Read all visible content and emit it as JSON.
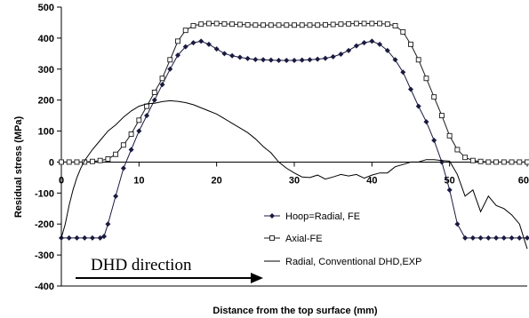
{
  "chart_data": {
    "type": "line",
    "title": "",
    "xlabel": "Distance from the top surface (mm)",
    "ylabel": "Residual stress (MPa)",
    "xlim": [
      0,
      60
    ],
    "ylim": [
      -400,
      500
    ],
    "x_ticks": [
      "0",
      "10",
      "20",
      "30",
      "40",
      "50",
      "60"
    ],
    "y_ticks": [
      "500",
      "400",
      "300",
      "200",
      "100",
      "0",
      "-100",
      "-200",
      "-300",
      "-400"
    ],
    "grid": false,
    "legend_position": "bottom-right",
    "series": [
      {
        "name": "Hoop=Radial, FE",
        "marker": "filled-diamond",
        "color": "#1a1a40",
        "x": [
          0,
          1,
          2,
          3,
          4,
          5,
          5.5,
          6,
          7,
          8,
          9,
          10,
          11,
          12,
          13,
          14,
          15,
          16,
          17,
          18,
          19,
          20,
          21,
          22,
          23,
          24,
          25,
          26,
          27,
          28,
          29,
          30,
          31,
          32,
          33,
          34,
          35,
          36,
          37,
          38,
          39,
          40,
          41,
          42,
          43,
          44,
          45,
          46,
          47,
          48,
          49,
          50,
          51,
          52,
          53,
          54,
          55,
          56,
          57,
          58,
          59,
          60
        ],
        "y": [
          -245,
          -245,
          -245,
          -245,
          -245,
          -245,
          -240,
          -200,
          -110,
          -20,
          40,
          100,
          150,
          200,
          250,
          300,
          345,
          372,
          385,
          390,
          380,
          365,
          350,
          343,
          338,
          334,
          331,
          330,
          329,
          328,
          328,
          328,
          329,
          330,
          332,
          335,
          340,
          348,
          360,
          375,
          385,
          390,
          380,
          360,
          330,
          290,
          235,
          180,
          130,
          70,
          0,
          -90,
          -200,
          -245,
          -245,
          -245,
          -245,
          -245,
          -245,
          -245,
          -245,
          -245
        ]
      },
      {
        "name": "Axial-FE",
        "marker": "open-square",
        "color": "#1a1a1a",
        "x": [
          0,
          1,
          2,
          3,
          4,
          5,
          6,
          7,
          8,
          9,
          10,
          11,
          12,
          13,
          14,
          15,
          16,
          17,
          18,
          19,
          20,
          21,
          22,
          23,
          24,
          25,
          26,
          27,
          28,
          29,
          30,
          31,
          32,
          33,
          34,
          35,
          36,
          37,
          38,
          39,
          40,
          41,
          42,
          43,
          44,
          45,
          46,
          47,
          48,
          49,
          50,
          51,
          52,
          53,
          54,
          55,
          56,
          57,
          58,
          59,
          60
        ],
        "y": [
          0,
          0,
          0,
          0,
          2,
          5,
          10,
          25,
          55,
          90,
          135,
          180,
          225,
          270,
          330,
          390,
          425,
          440,
          445,
          447,
          447,
          446,
          445,
          444,
          443,
          442,
          442,
          442,
          442,
          442,
          442,
          442,
          442,
          442,
          443,
          444,
          445,
          446,
          447,
          447,
          447,
          447,
          445,
          440,
          420,
          380,
          330,
          270,
          210,
          150,
          85,
          40,
          15,
          5,
          2,
          0,
          0,
          0,
          0,
          0,
          0
        ]
      },
      {
        "name": "Radial, Conventional DHD,EXP",
        "marker": "none",
        "color": "#000000",
        "x": [
          0,
          0.5,
          1,
          1.5,
          2,
          2.5,
          3,
          4,
          5,
          6,
          7,
          8,
          9,
          10,
          11,
          12,
          13,
          14,
          15,
          16,
          17,
          18,
          19,
          20,
          21,
          22,
          23,
          24,
          25,
          26,
          27,
          28,
          29,
          30,
          31,
          32,
          33,
          34,
          35,
          36,
          37,
          38,
          39,
          40,
          41,
          42,
          43,
          44,
          45,
          46,
          47,
          48,
          49,
          50,
          51,
          52,
          53,
          54,
          55,
          56,
          57,
          58,
          59,
          59.5,
          60
        ],
        "y": [
          -245,
          -200,
          -140,
          -90,
          -50,
          -20,
          5,
          40,
          70,
          100,
          120,
          145,
          165,
          180,
          188,
          190,
          195,
          198,
          196,
          192,
          185,
          175,
          165,
          155,
          140,
          125,
          110,
          95,
          75,
          50,
          30,
          0,
          -20,
          -35,
          -48,
          -50,
          -42,
          -55,
          -48,
          -40,
          -45,
          -40,
          -52,
          -42,
          -35,
          -35,
          -15,
          -8,
          0,
          0,
          8,
          8,
          5,
          3,
          -40,
          -110,
          -90,
          -160,
          -110,
          -140,
          -150,
          -170,
          -200,
          -240,
          -280
        ]
      }
    ],
    "annotations": [
      {
        "text": "DHD direction",
        "type": "arrow"
      }
    ]
  }
}
